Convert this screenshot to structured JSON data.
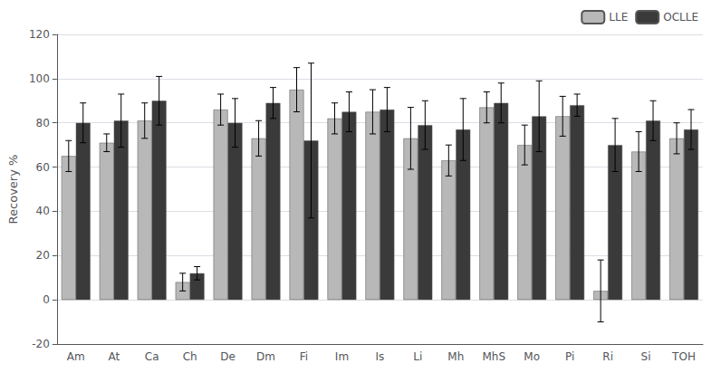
{
  "chart_data": {
    "type": "bar",
    "categories": [
      "Am",
      "At",
      "Ca",
      "Ch",
      "De",
      "Dm",
      "Fi",
      "Im",
      "Is",
      "Li",
      "Mh",
      "MhS",
      "Mo",
      "Pi",
      "Ri",
      "Si",
      "TOH"
    ],
    "series": [
      {
        "name": "LLE",
        "color": "#b8b8b8",
        "values": [
          65,
          71,
          81,
          8,
          86,
          73,
          95,
          82,
          85,
          73,
          63,
          87,
          70,
          83,
          4,
          67,
          73
        ],
        "errors": [
          7,
          4,
          8,
          4,
          7,
          8,
          10,
          7,
          10,
          14,
          7,
          7,
          9,
          9,
          14,
          9,
          7
        ]
      },
      {
        "name": "OCLLE",
        "color": "#3a3a3a",
        "values": [
          80,
          81,
          90,
          12,
          80,
          89,
          72,
          85,
          86,
          79,
          77,
          89,
          83,
          88,
          70,
          81,
          77
        ],
        "errors": [
          9,
          12,
          11,
          3,
          11,
          7,
          35,
          9,
          10,
          11,
          14,
          9,
          16,
          5,
          12,
          9,
          9
        ]
      }
    ],
    "ylabel": "Recovery %",
    "ylim": [
      -20,
      120
    ],
    "yticks": [
      -20,
      0,
      20,
      40,
      60,
      80,
      100,
      120
    ],
    "grid": true,
    "legend": "upper right"
  }
}
